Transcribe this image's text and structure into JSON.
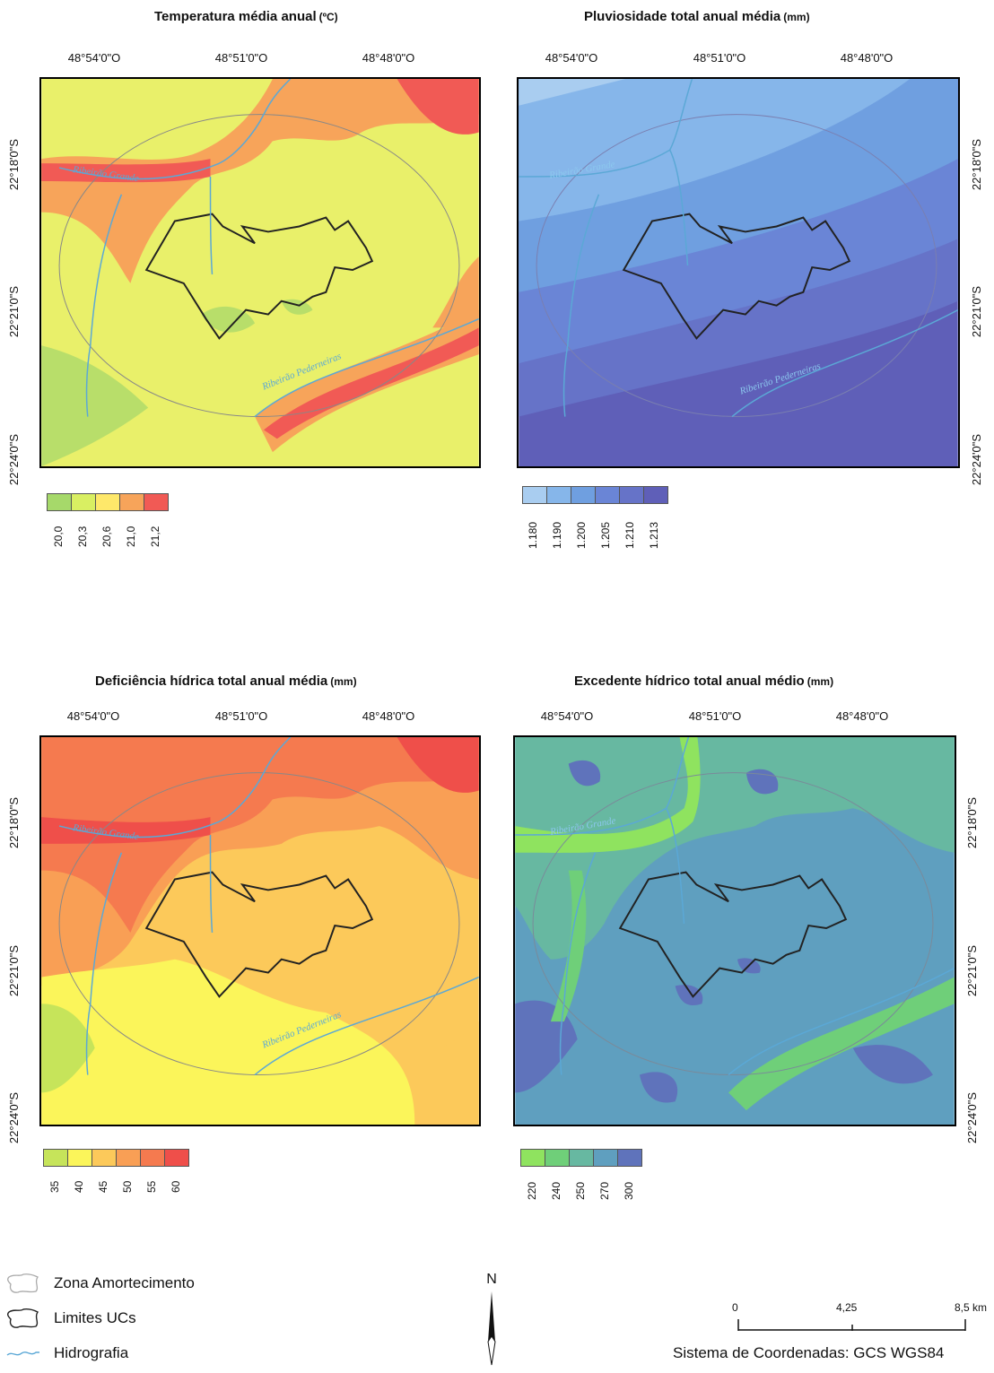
{
  "panels": [
    {
      "title": "Temperatura média anual",
      "unit": "(ºC)",
      "lon_ticks": [
        "48°54'0\"O",
        "48°51'0\"O",
        "48°48'0\"O"
      ],
      "lat_ticks": [
        "22°18'0\"S",
        "22°21'0\"S",
        "22°24'0\"S"
      ],
      "lat_side": "left",
      "river_labels": [
        "Ribeirão Grande",
        "Ribeirão Pederneiras"
      ],
      "scale_colors": [
        "#a6d96a",
        "#d9ef62",
        "#fee86a",
        "#f7a45a",
        "#f15a55"
      ],
      "scale_labels": [
        "20,0",
        "20,3",
        "20,6",
        "21,0",
        "21,2"
      ]
    },
    {
      "title": "Pluviosidade total anual média",
      "unit": "(mm)",
      "lon_ticks": [
        "48°54'0\"O",
        "48°51'0\"O",
        "48°48'0\"O"
      ],
      "lat_ticks": [
        "22°18'0\"S",
        "22°21'0\"S",
        "22°24'0\"S"
      ],
      "lat_side": "right",
      "river_labels": [
        "Ribeirão Grande",
        "Ribeirão Pederneiras"
      ],
      "scale_colors": [
        "#a9cdf0",
        "#86b6ea",
        "#6f9fe0",
        "#6a85d6",
        "#6673c8",
        "#5f5fb8"
      ],
      "scale_labels": [
        "1.180",
        "1.190",
        "1.200",
        "1.205",
        "1.210",
        "1.213"
      ]
    },
    {
      "title": "Deficiência hídrica total anual média",
      "unit": "(mm)",
      "lon_ticks": [
        "48°54'0\"O",
        "48°51'0\"O",
        "48°48'0\"O"
      ],
      "lat_ticks": [
        "22°18'0\"S",
        "22°21'0\"S",
        "22°24'0\"S"
      ],
      "lat_side": "left",
      "river_labels": [
        "Ribeirão Grande",
        "Ribeirão Pederneiras"
      ],
      "scale_colors": [
        "#c6e45a",
        "#fbf55a",
        "#fcc95a",
        "#f99f55",
        "#f57a4f",
        "#ef4f4a"
      ],
      "scale_labels": [
        "35",
        "40",
        "45",
        "50",
        "55",
        "60"
      ]
    },
    {
      "title": "Excedente hídrico total anual médio",
      "unit": "(mm)",
      "lon_ticks": [
        "48°54'0\"O",
        "48°51'0\"O",
        "48°48'0\"O"
      ],
      "lat_ticks": [
        "22°18'0\"S",
        "22°21'0\"S",
        "22°24'0\"S"
      ],
      "lat_side": "right",
      "river_labels": [
        "Ribeirão Grande",
        ""
      ],
      "scale_colors": [
        "#8fe35f",
        "#6fcf79",
        "#67b8a1",
        "#5f9fbf",
        "#5f73bb"
      ],
      "scale_labels": [
        "220",
        "240",
        "250",
        "270",
        "300"
      ]
    }
  ],
  "legend": {
    "items": [
      {
        "label": "Zona Amortecimento",
        "icon": "buffer-zone-outline-icon",
        "color": "#aaaaaa"
      },
      {
        "label": "Limites UCs",
        "icon": "protected-area-outline-icon",
        "color": "#222222"
      },
      {
        "label": "Hidrografia",
        "icon": "river-line-icon",
        "color": "#5ba8d6"
      }
    ]
  },
  "north_arrow": {
    "label": "N"
  },
  "scale_bar": {
    "ticks": [
      "0",
      "4,25",
      "8,5 km"
    ]
  },
  "coordinate_system": "Sistema de Coordenadas: GCS WGS84"
}
